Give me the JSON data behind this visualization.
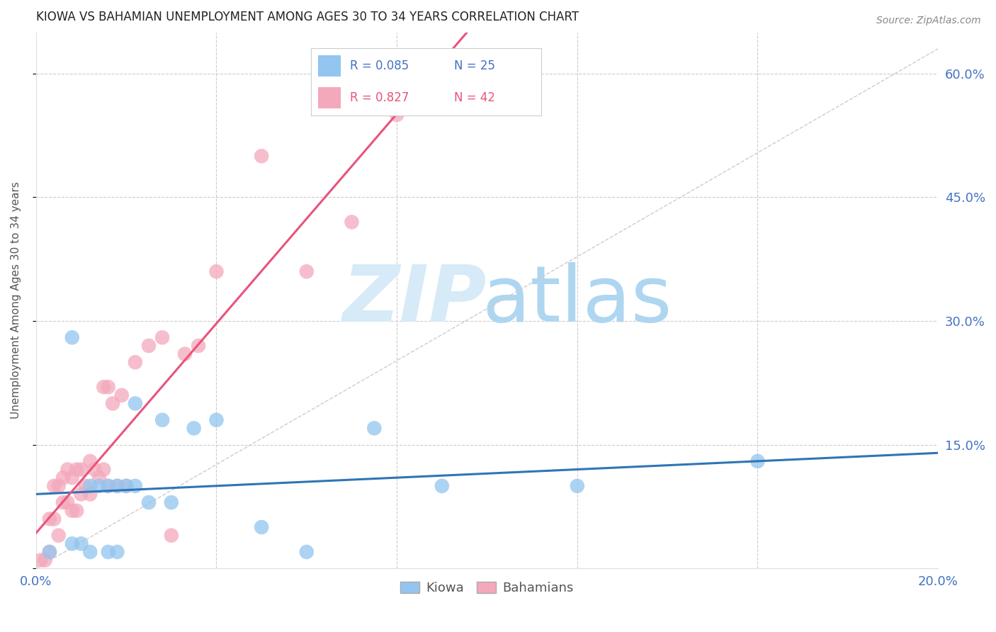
{
  "title": "KIOWA VS BAHAMIAN UNEMPLOYMENT AMONG AGES 30 TO 34 YEARS CORRELATION CHART",
  "source": "Source: ZipAtlas.com",
  "ylabel": "Unemployment Among Ages 30 to 34 years",
  "xlim": [
    0.0,
    0.2
  ],
  "ylim": [
    0.0,
    0.65
  ],
  "xticks": [
    0.0,
    0.04,
    0.08,
    0.12,
    0.16,
    0.2
  ],
  "yticks": [
    0.0,
    0.15,
    0.3,
    0.45,
    0.6
  ],
  "ytick_labels": [
    "",
    "15.0%",
    "30.0%",
    "45.0%",
    "60.0%"
  ],
  "xtick_labels": [
    "0.0%",
    "",
    "",
    "",
    "",
    "20.0%"
  ],
  "kiowa_color": "#92C5F0",
  "bahamian_color": "#F4A8BB",
  "kiowa_line_color": "#2E75B6",
  "bahamian_line_color": "#E8547A",
  "legend_kiowa_R": "0.085",
  "legend_kiowa_N": "25",
  "legend_bahamian_R": "0.827",
  "legend_bahamian_N": "42",
  "kiowa_x": [
    0.003,
    0.008,
    0.008,
    0.01,
    0.012,
    0.012,
    0.014,
    0.016,
    0.016,
    0.018,
    0.018,
    0.02,
    0.022,
    0.022,
    0.025,
    0.028,
    0.03,
    0.035,
    0.04,
    0.05,
    0.06,
    0.075,
    0.09,
    0.12,
    0.16
  ],
  "kiowa_y": [
    0.02,
    0.03,
    0.28,
    0.03,
    0.1,
    0.02,
    0.1,
    0.1,
    0.02,
    0.1,
    0.02,
    0.1,
    0.1,
    0.2,
    0.08,
    0.18,
    0.08,
    0.17,
    0.18,
    0.05,
    0.02,
    0.17,
    0.1,
    0.1,
    0.13
  ],
  "bahamian_x": [
    0.001,
    0.002,
    0.003,
    0.003,
    0.004,
    0.004,
    0.005,
    0.005,
    0.006,
    0.006,
    0.007,
    0.007,
    0.008,
    0.008,
    0.009,
    0.009,
    0.01,
    0.01,
    0.011,
    0.012,
    0.012,
    0.013,
    0.014,
    0.015,
    0.015,
    0.016,
    0.016,
    0.017,
    0.018,
    0.019,
    0.02,
    0.022,
    0.025,
    0.028,
    0.03,
    0.033,
    0.036,
    0.04,
    0.05,
    0.06,
    0.07,
    0.08
  ],
  "bahamian_y": [
    0.01,
    0.01,
    0.02,
    0.06,
    0.06,
    0.1,
    0.04,
    0.1,
    0.08,
    0.11,
    0.08,
    0.12,
    0.07,
    0.11,
    0.07,
    0.12,
    0.09,
    0.12,
    0.1,
    0.09,
    0.13,
    0.12,
    0.11,
    0.12,
    0.22,
    0.1,
    0.22,
    0.2,
    0.1,
    0.21,
    0.1,
    0.25,
    0.27,
    0.28,
    0.04,
    0.26,
    0.27,
    0.36,
    0.5,
    0.36,
    0.42,
    0.55
  ]
}
